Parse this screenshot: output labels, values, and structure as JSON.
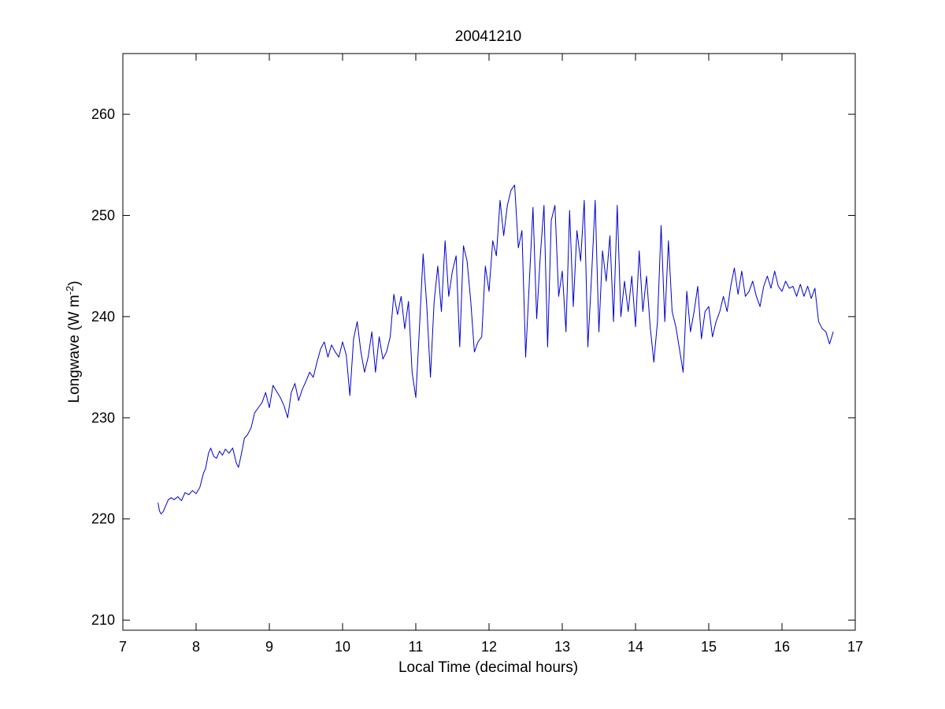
{
  "chart_data": {
    "type": "line",
    "title": "20041210",
    "xlabel": "Local Time (decimal hours)",
    "ylabel": {
      "base": "Longwave (W m",
      "superscript": "-2",
      "suffix": ")"
    },
    "xlim": [
      7,
      17
    ],
    "ylim": [
      209,
      266
    ],
    "xticks": [
      7,
      8,
      9,
      10,
      11,
      12,
      13,
      14,
      15,
      16,
      17
    ],
    "yticks": [
      210,
      220,
      230,
      240,
      250,
      260
    ],
    "grid": false,
    "legend": "none",
    "series": [
      {
        "color": "#0000cc",
        "x": [
          7.48,
          7.5,
          7.52,
          7.55,
          7.58,
          7.62,
          7.66,
          7.7,
          7.75,
          7.8,
          7.85,
          7.9,
          7.95,
          8.0,
          8.05,
          8.1,
          8.13,
          8.17,
          8.2,
          8.24,
          8.28,
          8.32,
          8.36,
          8.4,
          8.45,
          8.5,
          8.55,
          8.58,
          8.62,
          8.66,
          8.7,
          8.75,
          8.8,
          8.85,
          8.9,
          8.95,
          9.0,
          9.05,
          9.1,
          9.15,
          9.2,
          9.25,
          9.3,
          9.35,
          9.4,
          9.45,
          9.5,
          9.55,
          9.6,
          9.65,
          9.7,
          9.75,
          9.8,
          9.85,
          9.9,
          9.95,
          10.0,
          10.05,
          10.1,
          10.15,
          10.2,
          10.25,
          10.3,
          10.35,
          10.4,
          10.45,
          10.5,
          10.55,
          10.6,
          10.65,
          10.7,
          10.75,
          10.8,
          10.85,
          10.9,
          10.95,
          11.0,
          11.05,
          11.1,
          11.15,
          11.2,
          11.25,
          11.3,
          11.35,
          11.4,
          11.45,
          11.5,
          11.55,
          11.6,
          11.65,
          11.7,
          11.75,
          11.8,
          11.85,
          11.9,
          11.95,
          12.0,
          12.05,
          12.1,
          12.15,
          12.2,
          12.25,
          12.3,
          12.35,
          12.4,
          12.45,
          12.5,
          12.55,
          12.6,
          12.65,
          12.7,
          12.75,
          12.8,
          12.85,
          12.9,
          12.95,
          13.0,
          13.05,
          13.1,
          13.15,
          13.2,
          13.25,
          13.3,
          13.35,
          13.4,
          13.45,
          13.5,
          13.55,
          13.6,
          13.65,
          13.7,
          13.75,
          13.8,
          13.85,
          13.9,
          13.95,
          14.0,
          14.05,
          14.1,
          14.15,
          14.2,
          14.25,
          14.3,
          14.35,
          14.4,
          14.45,
          14.5,
          14.55,
          14.6,
          14.65,
          14.7,
          14.75,
          14.8,
          14.85,
          14.9,
          14.95,
          15.0,
          15.05,
          15.1,
          15.15,
          15.2,
          15.25,
          15.3,
          15.35,
          15.4,
          15.45,
          15.5,
          15.55,
          15.6,
          15.65,
          15.7,
          15.75,
          15.8,
          15.85,
          15.9,
          15.95,
          16.0,
          16.05,
          16.1,
          16.15,
          16.2,
          16.25,
          16.3,
          16.35,
          16.4,
          16.45,
          16.5,
          16.55,
          16.6,
          16.65,
          16.7
        ],
        "y": [
          221.6,
          220.8,
          220.5,
          220.7,
          221.2,
          221.9,
          222.1,
          221.9,
          222.2,
          221.8,
          222.6,
          222.4,
          222.8,
          222.5,
          223.1,
          224.5,
          225.0,
          226.5,
          227.0,
          226.2,
          226.0,
          226.7,
          226.3,
          226.9,
          226.5,
          227.0,
          225.5,
          225.1,
          226.5,
          228.0,
          228.3,
          229.0,
          230.5,
          231.0,
          231.5,
          232.5,
          231.0,
          233.2,
          232.6,
          232.0,
          231.2,
          230.0,
          232.5,
          233.4,
          231.7,
          232.8,
          233.6,
          234.5,
          234.0,
          235.5,
          236.8,
          237.5,
          236.0,
          237.2,
          236.5,
          236.0,
          237.5,
          236.2,
          232.2,
          237.8,
          239.5,
          236.5,
          234.5,
          236.0,
          238.5,
          234.5,
          238.0,
          235.8,
          236.5,
          238.0,
          242.2,
          240.2,
          242.0,
          238.8,
          241.5,
          234.5,
          232.0,
          239.0,
          246.2,
          241.0,
          234.0,
          241.5,
          245.0,
          240.5,
          247.5,
          242.0,
          244.5,
          246.0,
          237.0,
          247.0,
          245.5,
          241.5,
          236.5,
          237.5,
          238.0,
          245.0,
          242.5,
          247.5,
          246.0,
          251.5,
          248.0,
          251.0,
          252.5,
          253.0,
          246.8,
          248.5,
          236.0,
          243.5,
          250.8,
          239.8,
          246.0,
          251.0,
          237.0,
          249.5,
          251.0,
          242.0,
          244.5,
          238.5,
          250.5,
          241.0,
          248.5,
          245.5,
          251.5,
          237.0,
          244.0,
          251.5,
          238.5,
          246.5,
          243.5,
          248.0,
          239.5,
          251.0,
          240.0,
          243.5,
          240.5,
          244.0,
          239.0,
          246.5,
          240.5,
          244.0,
          239.0,
          235.5,
          239.5,
          249.0,
          239.5,
          247.5,
          240.5,
          239.0,
          236.8,
          234.5,
          242.5,
          238.5,
          240.5,
          243.0,
          237.8,
          240.5,
          241.0,
          238.0,
          239.5,
          240.5,
          242.0,
          240.5,
          243.0,
          244.8,
          242.2,
          244.5,
          242.0,
          242.5,
          243.5,
          242.0,
          241.0,
          243.0,
          244.0,
          242.8,
          244.5,
          243.0,
          242.5,
          243.5,
          242.8,
          243.0,
          242.0,
          243.2,
          242.0,
          243.0,
          241.8,
          242.8,
          239.5,
          238.8,
          238.5,
          237.3,
          238.5
        ]
      }
    ]
  }
}
